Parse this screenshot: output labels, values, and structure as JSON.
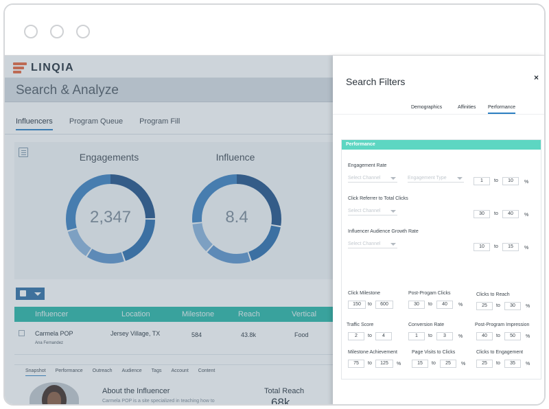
{
  "app": {
    "logo_text": "LINQIA",
    "page_title": "Search & Analyze"
  },
  "colors": {
    "accent": "#26b5a6",
    "brand_blue": "#2e6ea4",
    "perf_header": "#5dd6c2",
    "logo_orange": "#e8643a"
  },
  "tabs": [
    {
      "label": "Influencers",
      "active": true
    },
    {
      "label": "Program Queue",
      "active": false
    },
    {
      "label": "Program Fill",
      "active": false
    }
  ],
  "charts": {
    "engagements": {
      "title": "Engagements",
      "value": "2,347"
    },
    "influence": {
      "title": "Influence",
      "value": "8.4"
    }
  },
  "table": {
    "headers": [
      "Influencer",
      "Location",
      "Milestone",
      "Reach",
      "Vertical"
    ],
    "row": {
      "name": "Carmela POP",
      "subname": "Ana Fernandez",
      "location": "Jersey Village, TX",
      "milestone": "584",
      "reach": "43.8k",
      "vertical": "Food"
    }
  },
  "subtabs": [
    "Snapshot",
    "Performance",
    "Outreach",
    "Audience",
    "Tags",
    "Account",
    "Content"
  ],
  "about": {
    "title": "About the Influencer",
    "desc": "Carmela POP is a site specialized in teaching how to"
  },
  "total_reach": {
    "label": "Total Reach",
    "value": "68k"
  },
  "search_filters": {
    "title": "Search Filters",
    "close": "×",
    "tabs": [
      {
        "label": "Demographics",
        "active": false
      },
      {
        "label": "Affinities",
        "active": false
      },
      {
        "label": "Performance",
        "active": true
      }
    ],
    "panel_title": "Performance",
    "engagement_rate": {
      "label": "Engagement Rate",
      "select_channel": "Select Channel",
      "engagement_type": "Engagement Type",
      "from": "1",
      "to": "10",
      "to_label": "to",
      "unit": "%"
    },
    "click_referrer": {
      "label": "Click Referrer to Total Clicks",
      "select_channel": "Select Channel",
      "from": "30",
      "to": "40",
      "to_label": "to",
      "unit": "%"
    },
    "audience_growth": {
      "label": "Influencer Audience Growth Rate",
      "select_channel": "Select Channel",
      "from": "10",
      "to": "15",
      "to_label": "to",
      "unit": "%"
    },
    "grid": [
      {
        "label": "Click Milestone",
        "from": "150",
        "to": "600",
        "to_label": "to",
        "unit": ""
      },
      {
        "label": "Post-Progam Clicks",
        "from": "30",
        "to": "40",
        "to_label": "to",
        "unit": "%"
      },
      {
        "label": "Clicks to Reach",
        "from": "25",
        "to": "30",
        "to_label": "to",
        "unit": "%"
      },
      {
        "label": "Traffic Score",
        "from": "2",
        "to": "4",
        "to_label": "to",
        "unit": ""
      },
      {
        "label": "Conversion Rate",
        "from": "1",
        "to": "3",
        "to_label": "to",
        "unit": "%"
      },
      {
        "label": "Post-Program Impression",
        "from": "40",
        "to": "50",
        "to_label": "to",
        "unit": "%"
      },
      {
        "label": "Milestone Achievement",
        "from": "75",
        "to": "125",
        "to_label": "to",
        "unit": "%"
      },
      {
        "label": "Page Visits to Clicks",
        "from": "15",
        "to": "25",
        "to_label": "to",
        "unit": "%"
      },
      {
        "label": "Clicks to Engagement",
        "from": "25",
        "to": "35",
        "to_label": "to",
        "unit": "%"
      }
    ]
  }
}
